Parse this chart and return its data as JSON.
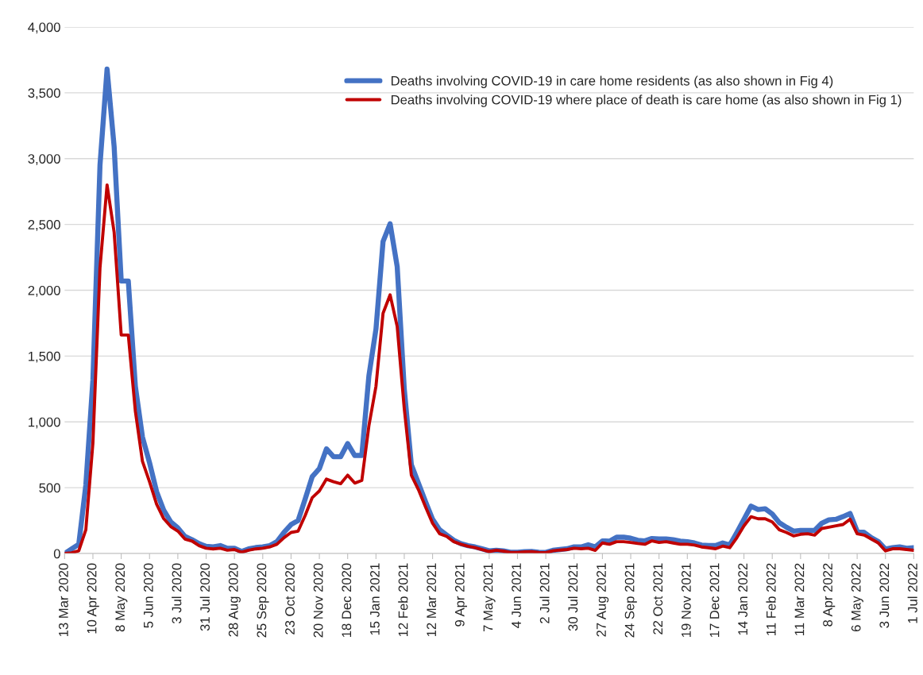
{
  "chart_data": {
    "type": "line",
    "categories": [
      "13 Mar 2020",
      null,
      null,
      null,
      "10 Apr 2020",
      null,
      null,
      null,
      "8 May 2020",
      null,
      null,
      null,
      "5 Jun 2020",
      null,
      null,
      null,
      "3 Jul 2020",
      null,
      null,
      null,
      "31 Jul 2020",
      null,
      null,
      null,
      "28 Aug 2020",
      null,
      null,
      null,
      "25 Sep 2020",
      null,
      null,
      null,
      "23 Oct 2020",
      null,
      null,
      null,
      "20 Nov 2020",
      null,
      null,
      null,
      "18 Dec 2020",
      null,
      null,
      null,
      "15 Jan 2021",
      null,
      null,
      null,
      "12 Feb 2021",
      null,
      null,
      null,
      "12 Mar 2021",
      null,
      null,
      null,
      "9 Apr 2021",
      null,
      null,
      null,
      "7 May 2021",
      null,
      null,
      null,
      "4 Jun 2021",
      null,
      null,
      null,
      "2 Jul 2021",
      null,
      null,
      null,
      "30 Jul 2021",
      null,
      null,
      null,
      "27 Aug 2021",
      null,
      null,
      null,
      "24 Sep 2021",
      null,
      null,
      null,
      "22 Oct 2021",
      null,
      null,
      null,
      "19 Nov 2021",
      null,
      null,
      null,
      "17 Dec 2021",
      null,
      null,
      null,
      "14 Jan 2022",
      null,
      null,
      null,
      "11 Feb 2022",
      null,
      null,
      null,
      "11 Mar 2022",
      null,
      null,
      null,
      "8 Apr 2022",
      null,
      null,
      null,
      "6 May 2022",
      null,
      null,
      null,
      "3 Jun 2022",
      null,
      null,
      null,
      "1 Jul 2022"
    ],
    "series": [
      {
        "name": "Deaths involving COVID-19 in care home residents (as also shown in Fig 4)",
        "color": "#4472c4",
        "values": [
          0,
          35,
          70,
          520,
          1320,
          2950,
          3680,
          3090,
          2070,
          2070,
          1270,
          885,
          690,
          470,
          330,
          240,
          195,
          130,
          105,
          75,
          55,
          50,
          60,
          40,
          40,
          15,
          35,
          45,
          50,
          60,
          90,
          160,
          220,
          250,
          415,
          585,
          645,
          795,
          735,
          735,
          835,
          745,
          745,
          1350,
          1705,
          2370,
          2505,
          2180,
          1250,
          675,
          535,
          395,
          260,
          180,
          140,
          100,
          75,
          60,
          50,
          35,
          20,
          25,
          20,
          10,
          10,
          14,
          16,
          10,
          8,
          24,
          30,
          36,
          50,
          50,
          66,
          50,
          96,
          94,
          124,
          124,
          116,
          100,
          96,
          114,
          110,
          110,
          104,
          94,
          90,
          80,
          64,
          60,
          60,
          80,
          64,
          160,
          260,
          360,
          334,
          340,
          300,
          234,
          200,
          170,
          176,
          176,
          176,
          230,
          256,
          260,
          280,
          304,
          170,
          160,
          120,
          90,
          34,
          44,
          50,
          40,
          44
        ]
      },
      {
        "name": "Deaths involving COVID-19 where place of death is care home (as also shown in Fig 1)",
        "color": "#c00000",
        "values": [
          0,
          5,
          20,
          180,
          840,
          2170,
          2800,
          2440,
          1660,
          1660,
          1080,
          700,
          545,
          375,
          265,
          205,
          170,
          110,
          95,
          60,
          40,
          35,
          40,
          25,
          30,
          10,
          25,
          35,
          40,
          50,
          70,
          120,
          160,
          170,
          290,
          425,
          475,
          565,
          545,
          530,
          595,
          535,
          555,
          970,
          1270,
          1825,
          1965,
          1725,
          1100,
          595,
          485,
          355,
          230,
          150,
          130,
          90,
          70,
          55,
          45,
          30,
          15,
          25,
          18,
          8,
          8,
          12,
          14,
          8,
          6,
          20,
          26,
          30,
          40,
          36,
          40,
          24,
          80,
          70,
          90,
          90,
          84,
          76,
          70,
          96,
          84,
          90,
          80,
          70,
          70,
          64,
          50,
          44,
          36,
          56,
          44,
          120,
          210,
          280,
          264,
          264,
          240,
          180,
          160,
          134,
          146,
          150,
          140,
          190,
          200,
          210,
          220,
          260,
          150,
          140,
          110,
          80,
          20,
          36,
          36,
          30,
          24
        ]
      }
    ],
    "ylim": [
      0,
      4000
    ],
    "yticks": [
      {
        "value": 0,
        "label": "0"
      },
      {
        "value": 500,
        "label": "500"
      },
      {
        "value": 1000,
        "label": "1,000"
      },
      {
        "value": 1500,
        "label": "1,500"
      },
      {
        "value": 2000,
        "label": "2,000"
      },
      {
        "value": 2500,
        "label": "2,500"
      },
      {
        "value": 3000,
        "label": "3,000"
      },
      {
        "value": 3500,
        "label": "3,500"
      },
      {
        "value": 4000,
        "label": "4,000"
      }
    ],
    "grid": "y",
    "legend": "top right",
    "marker": "none",
    "line_style": "solid"
  }
}
